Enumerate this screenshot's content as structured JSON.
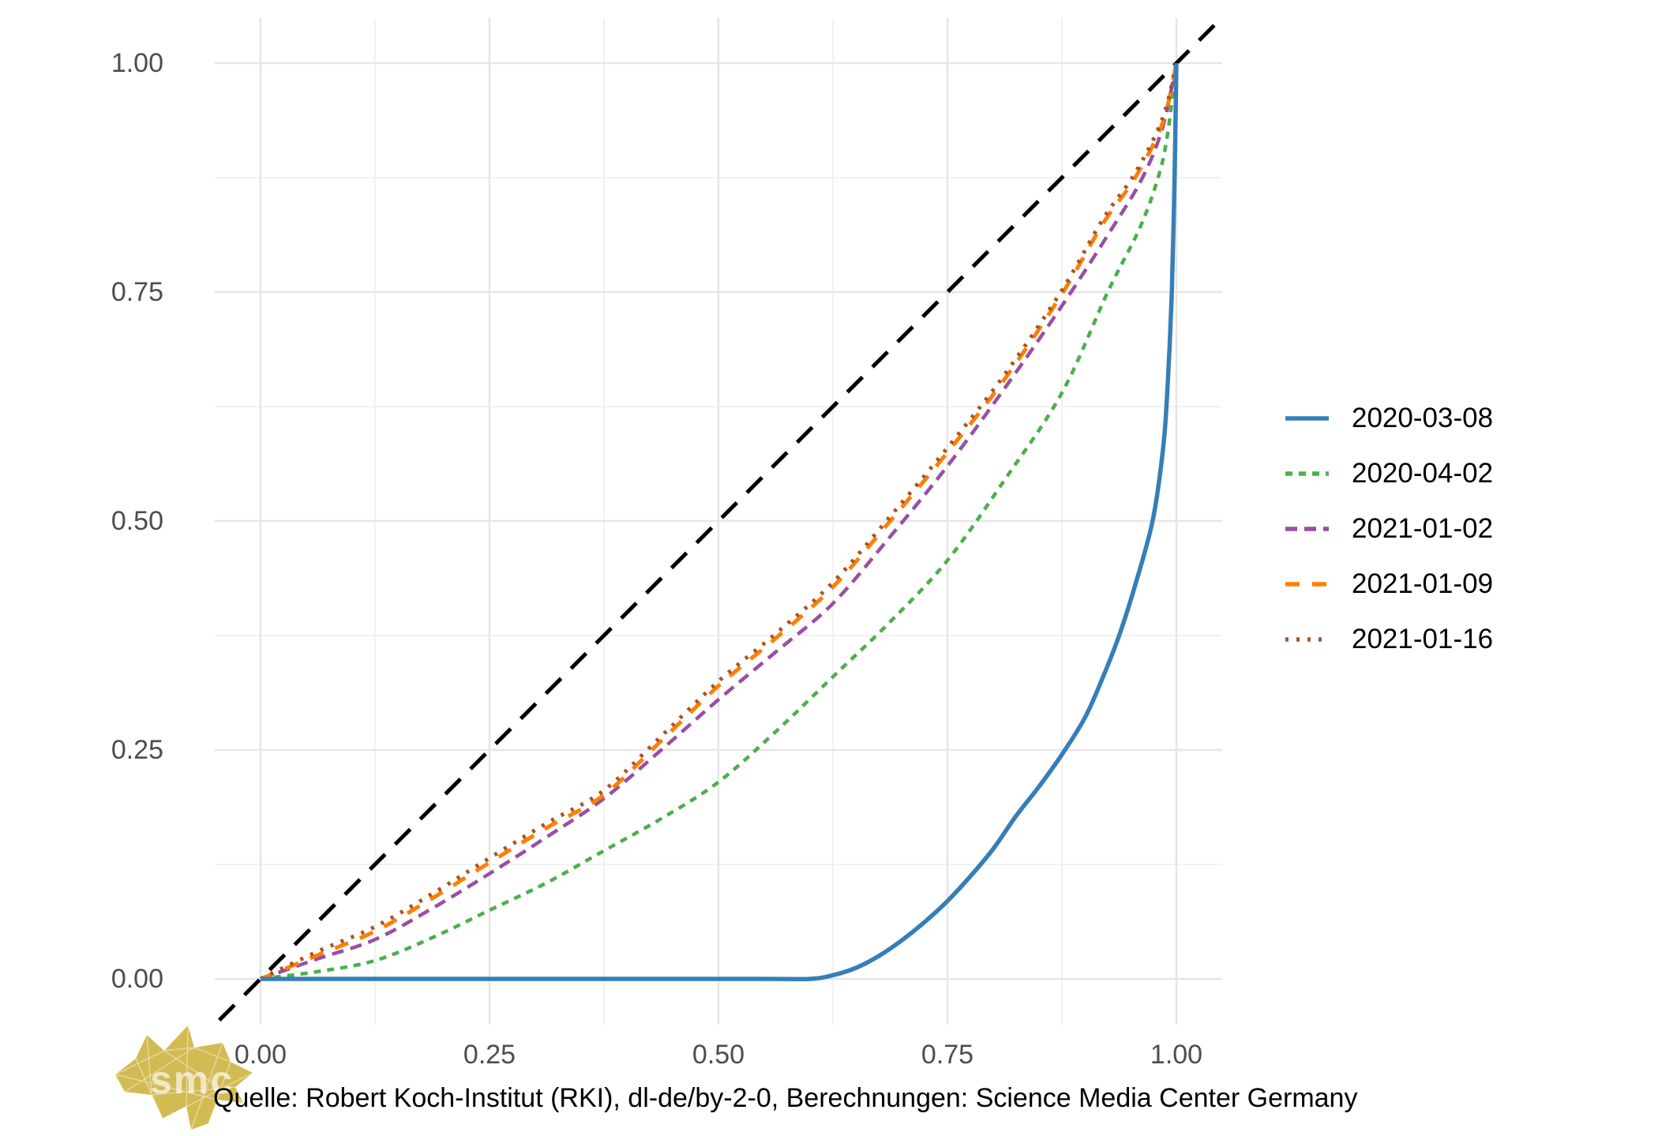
{
  "page": {
    "background": "#ffffff"
  },
  "caption": {
    "text": "Quelle: Robert Koch-Institut (RKI), dl-de/by-2-0, Berechnungen: Science Media Center Germany"
  },
  "logo": {
    "text": "smc",
    "color": "#d3bb54"
  },
  "axes": {
    "x_tick_labels": [
      "0.00",
      "0.25",
      "0.50",
      "0.75",
      "1.00"
    ],
    "y_tick_labels": [
      "0.00",
      "0.25",
      "0.50",
      "0.75",
      "1.00"
    ],
    "tick_values": [
      0,
      0.25,
      0.5,
      0.75,
      1
    ],
    "minor_tick_values": [
      0.125,
      0.375,
      0.625,
      0.875
    ],
    "tick_label_color": "#4d4d4d",
    "grid_major_color": "#e6e6e6",
    "grid_minor_color": "#f1f1f1"
  },
  "chart_data": {
    "type": "line",
    "title": "",
    "xlabel": "",
    "ylabel": "",
    "xlim": [
      -0.05,
      1.05
    ],
    "ylim": [
      -0.05,
      1.05
    ],
    "grid": "major+minor",
    "legend_position": "right",
    "equality_line": {
      "name": "equality-diagonal",
      "color": "#000000",
      "dash": "27 18",
      "width": 5,
      "x": [
        -0.045,
        1.045
      ],
      "y": [
        -0.045,
        1.045
      ]
    },
    "series": [
      {
        "name": "2020-03-08",
        "color": "#377EB8",
        "dash": "solid",
        "width": 5.5,
        "x": [
          0,
          0.3,
          0.55,
          0.6,
          0.625,
          0.65,
          0.675,
          0.7,
          0.725,
          0.75,
          0.775,
          0.8,
          0.825,
          0.85,
          0.875,
          0.9,
          0.92,
          0.9375,
          0.955,
          0.974,
          0.985,
          0.99,
          0.995,
          0.998,
          1.0
        ],
        "y": [
          0,
          0,
          0,
          0,
          0.004,
          0.012,
          0.025,
          0.042,
          0.062,
          0.085,
          0.112,
          0.142,
          0.178,
          0.21,
          0.245,
          0.285,
          0.33,
          0.375,
          0.43,
          0.5,
          0.575,
          0.64,
          0.75,
          0.875,
          1.0
        ]
      },
      {
        "name": "2020-04-02",
        "color": "#4DAF4A",
        "dash": "9 8",
        "width": 4.5,
        "x": [
          0,
          0.0625,
          0.125,
          0.1875,
          0.25,
          0.3125,
          0.375,
          0.4375,
          0.5,
          0.5625,
          0.625,
          0.6875,
          0.75,
          0.8125,
          0.875,
          0.925,
          0.96,
          0.98,
          0.99,
          1.0
        ],
        "y": [
          0,
          0.008,
          0.02,
          0.045,
          0.075,
          0.105,
          0.14,
          0.175,
          0.215,
          0.27,
          0.33,
          0.39,
          0.457,
          0.545,
          0.64,
          0.75,
          0.82,
          0.875,
          0.92,
          1.0
        ]
      },
      {
        "name": "2021-01-02",
        "color": "#984EA3",
        "dash": "15 9",
        "width": 4.5,
        "x": [
          0,
          0.0625,
          0.125,
          0.1875,
          0.25,
          0.3125,
          0.375,
          0.4375,
          0.5,
          0.5625,
          0.625,
          0.6875,
          0.75,
          0.8125,
          0.875,
          0.93,
          0.963,
          0.985,
          1.0
        ],
        "y": [
          0,
          0.022,
          0.043,
          0.077,
          0.115,
          0.155,
          0.197,
          0.25,
          0.305,
          0.357,
          0.41,
          0.483,
          0.56,
          0.645,
          0.735,
          0.82,
          0.875,
          0.93,
          1.0
        ]
      },
      {
        "name": "2021-01-09",
        "color": "#FF7F00",
        "dash": "18 16",
        "width": 5,
        "x": [
          0,
          0.0625,
          0.125,
          0.1875,
          0.25,
          0.3125,
          0.375,
          0.4375,
          0.5,
          0.5625,
          0.625,
          0.6875,
          0.75,
          0.8125,
          0.875,
          0.92,
          0.955,
          0.985,
          1.0
        ],
        "y": [
          0,
          0.026,
          0.052,
          0.088,
          0.127,
          0.165,
          0.201,
          0.26,
          0.32,
          0.372,
          0.428,
          0.5,
          0.575,
          0.655,
          0.748,
          0.825,
          0.875,
          0.935,
          1.0
        ]
      },
      {
        "name": "2021-01-16",
        "color": "#A65628",
        "dash": "4 10",
        "width": 5,
        "x": [
          0,
          0.0625,
          0.125,
          0.1875,
          0.25,
          0.3125,
          0.375,
          0.4375,
          0.5,
          0.5625,
          0.625,
          0.6875,
          0.75,
          0.8125,
          0.875,
          0.92,
          0.955,
          0.985,
          1.0
        ],
        "y": [
          0,
          0.03,
          0.057,
          0.093,
          0.132,
          0.17,
          0.206,
          0.265,
          0.325,
          0.377,
          0.433,
          0.505,
          0.58,
          0.66,
          0.752,
          0.83,
          0.88,
          0.94,
          1.0
        ]
      }
    ]
  }
}
